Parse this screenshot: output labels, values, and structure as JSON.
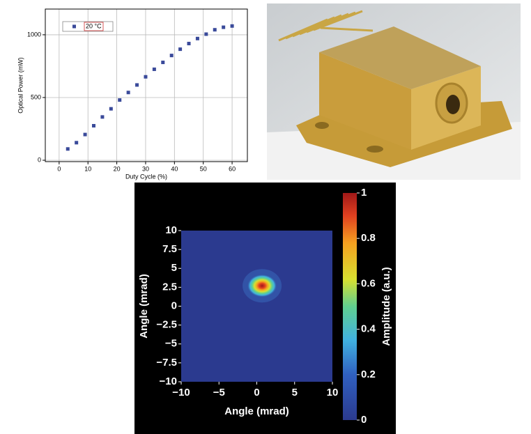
{
  "chart_data": [
    {
      "type": "scatter",
      "xlabel": "Duty Cycle (%)",
      "ylabel": "Optical Power (mW)",
      "series": [
        {
          "name": "20 °C",
          "color": "#3a4a9a",
          "x": [
            3,
            6,
            9,
            12,
            15,
            18,
            21,
            24,
            27,
            30,
            33,
            36,
            39,
            42,
            45,
            48,
            51,
            54,
            57,
            60
          ],
          "values": [
            90,
            140,
            205,
            275,
            345,
            410,
            480,
            540,
            600,
            665,
            725,
            780,
            835,
            885,
            930,
            970,
            1005,
            1040,
            1060,
            1070
          ]
        }
      ],
      "xlim": [
        -4.8,
        65.3
      ],
      "xticks": [
        0,
        10,
        20,
        30,
        40,
        50,
        60
      ],
      "ylim": [
        -11,
        1205
      ],
      "yticks": [
        0,
        500,
        1000
      ],
      "grid": true,
      "legend": "upper left"
    },
    {
      "type": "heatmap",
      "xlabel": "Angle (mrad)",
      "ylabel": "Angle (mrad)",
      "colorbar_label": "Amplitude (a.u.)",
      "peaks": [
        {
          "x": 0.7,
          "y": 2.7,
          "value": 1
        }
      ],
      "xlim": [
        -10,
        10
      ],
      "xticks": [
        {
          "value": -10,
          "label": "−10"
        },
        {
          "value": -5,
          "label": "−5"
        },
        0,
        5,
        10
      ],
      "ylim": [
        -10,
        10
      ],
      "yticks": [
        {
          "value": -10,
          "label": "−10"
        },
        {
          "value": -7.5,
          "label": "−7.5"
        },
        {
          "value": -5,
          "label": "−5"
        },
        {
          "value": -2.5,
          "label": "−2.5"
        },
        0,
        2.5,
        5,
        7.5,
        10
      ],
      "clim": [
        0,
        1
      ],
      "cticks": [
        0,
        0.2,
        0.4,
        0.6,
        0.8,
        1
      ]
    }
  ]
}
